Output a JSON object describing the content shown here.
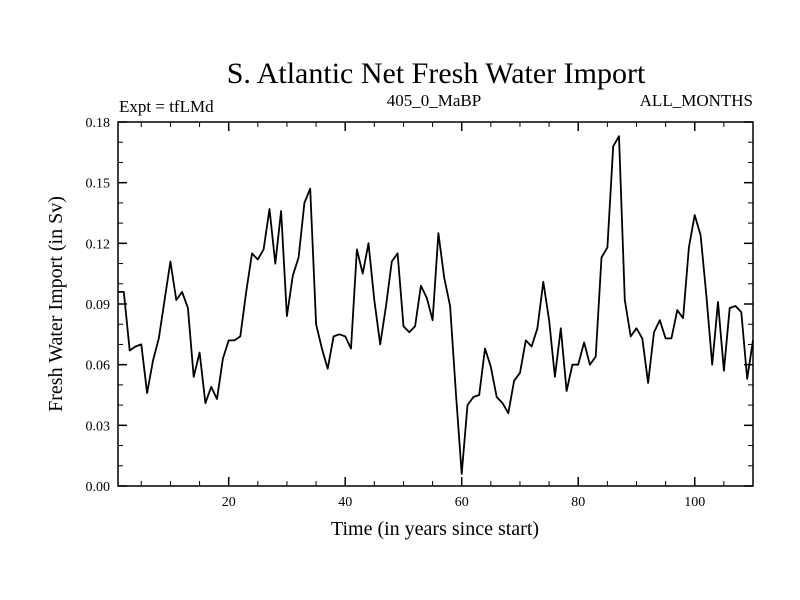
{
  "chart_data": {
    "type": "line",
    "title": "S. Atlantic Net Fresh Water Import",
    "left_label": "Expt = tfLMd",
    "center_label": "405_0_MaBP",
    "right_label": "ALL_MONTHS",
    "xlabel": "Time (in years since start)",
    "ylabel": "Fresh Water Import (in Sv)",
    "xlim": [
      1,
      110
    ],
    "ylim": [
      0,
      0.18
    ],
    "xticks": [
      20,
      40,
      60,
      80,
      100
    ],
    "yticks": [
      "0.00",
      "0.03",
      "0.06",
      "0.09",
      "0.12",
      "0.15",
      "0.18"
    ],
    "line_color": "#000000",
    "series": [
      {
        "name": "Net Fresh Water Import",
        "x": [
          1,
          2,
          3,
          4,
          5,
          6,
          7,
          8,
          9,
          10,
          11,
          12,
          13,
          14,
          15,
          16,
          17,
          18,
          19,
          20,
          21,
          22,
          23,
          24,
          25,
          26,
          27,
          28,
          29,
          30,
          31,
          32,
          33,
          34,
          35,
          36,
          37,
          38,
          39,
          40,
          41,
          42,
          43,
          44,
          45,
          46,
          47,
          48,
          49,
          50,
          51,
          52,
          53,
          54,
          55,
          56,
          57,
          58,
          59,
          60,
          61,
          62,
          63,
          64,
          65,
          66,
          67,
          68,
          69,
          70,
          71,
          72,
          73,
          74,
          75,
          76,
          77,
          78,
          79,
          80,
          81,
          82,
          83,
          84,
          85,
          86,
          87,
          88,
          89,
          90,
          91,
          92,
          93,
          94,
          95,
          96,
          97,
          98,
          99,
          100,
          101,
          102,
          103,
          104,
          105,
          106,
          107,
          108,
          109,
          110
        ],
        "values": [
          0.096,
          0.096,
          0.067,
          0.069,
          0.07,
          0.046,
          0.062,
          0.073,
          0.092,
          0.111,
          0.092,
          0.096,
          0.088,
          0.054,
          0.066,
          0.041,
          0.049,
          0.043,
          0.063,
          0.072,
          0.072,
          0.074,
          0.096,
          0.115,
          0.112,
          0.117,
          0.137,
          0.11,
          0.136,
          0.084,
          0.104,
          0.113,
          0.14,
          0.147,
          0.08,
          0.068,
          0.058,
          0.074,
          0.075,
          0.074,
          0.068,
          0.117,
          0.105,
          0.12,
          0.092,
          0.07,
          0.089,
          0.111,
          0.115,
          0.079,
          0.076,
          0.079,
          0.099,
          0.093,
          0.082,
          0.125,
          0.103,
          0.089,
          0.046,
          0.006,
          0.04,
          0.044,
          0.045,
          0.068,
          0.059,
          0.044,
          0.041,
          0.036,
          0.052,
          0.056,
          0.072,
          0.069,
          0.078,
          0.101,
          0.082,
          0.054,
          0.078,
          0.047,
          0.06,
          0.06,
          0.071,
          0.06,
          0.064,
          0.113,
          0.118,
          0.168,
          0.173,
          0.092,
          0.074,
          0.078,
          0.073,
          0.051,
          0.076,
          0.082,
          0.073,
          0.073,
          0.087,
          0.083,
          0.118,
          0.134,
          0.124,
          0.094,
          0.06,
          0.091,
          0.057,
          0.088,
          0.089,
          0.086,
          0.053,
          0.072
        ]
      }
    ]
  }
}
